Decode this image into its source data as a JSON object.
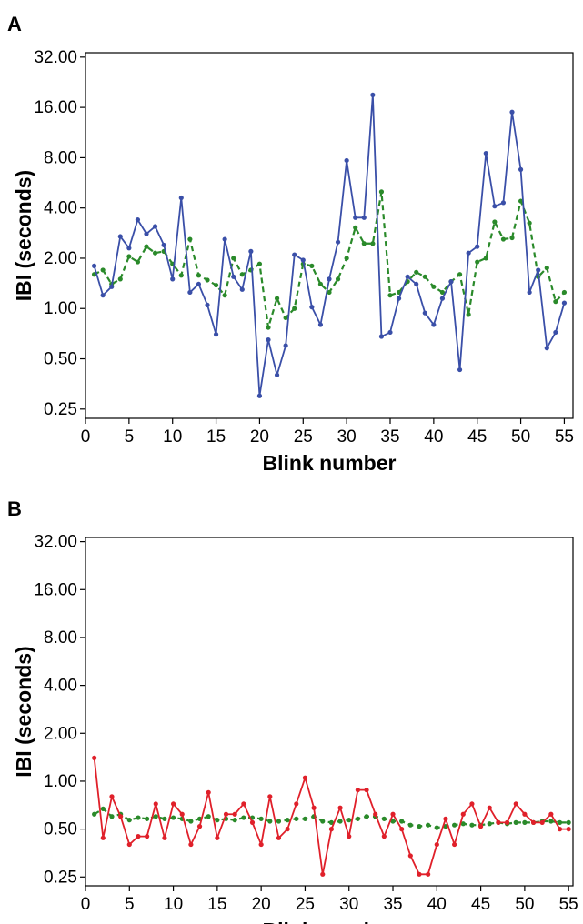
{
  "chart_data": [
    {
      "type": "line",
      "panel_label": "A",
      "xlabel": "Blink number",
      "ylabel": "IBI (seconds)",
      "y_scale": "log2",
      "ylim": [
        0.22,
        34
      ],
      "xlim": [
        0,
        56
      ],
      "y_ticks": [
        0.25,
        0.5,
        1.0,
        2.0,
        4.0,
        8.0,
        16.0,
        32.0
      ],
      "y_tick_labels": [
        "0.25",
        "0.50",
        "1.00",
        "2.00",
        "4.00",
        "8.00",
        "16.00",
        "32.00"
      ],
      "x_ticks": [
        0,
        5,
        10,
        15,
        20,
        25,
        30,
        35,
        40,
        45,
        50,
        55
      ],
      "x_tick_labels": [
        "0",
        "5",
        "10",
        "15",
        "20",
        "25",
        "30",
        "35",
        "40",
        "45",
        "50",
        "55"
      ],
      "grid": false,
      "series": [
        {
          "color": "#3a4fa8",
          "dash": "solid",
          "x": [
            1,
            2,
            3,
            4,
            5,
            6,
            7,
            8,
            9,
            10,
            11,
            12,
            13,
            14,
            15,
            16,
            17,
            18,
            19,
            20,
            21,
            22,
            23,
            24,
            25,
            26,
            27,
            28,
            29,
            30,
            31,
            32,
            33,
            34,
            35,
            36,
            37,
            38,
            39,
            40,
            41,
            42,
            43,
            44,
            45,
            46,
            47,
            48,
            49,
            50,
            51,
            52,
            53,
            54,
            55
          ],
          "values": [
            1.8,
            1.2,
            1.35,
            2.7,
            2.3,
            3.4,
            2.8,
            3.1,
            2.4,
            1.5,
            4.6,
            1.25,
            1.4,
            1.05,
            0.7,
            2.6,
            1.55,
            1.3,
            2.2,
            0.3,
            0.65,
            0.4,
            0.6,
            2.1,
            1.95,
            1.02,
            0.8,
            1.5,
            2.5,
            7.7,
            3.5,
            3.5,
            19.0,
            0.68,
            0.72,
            1.15,
            1.55,
            1.4,
            0.94,
            0.8,
            1.15,
            1.45,
            0.43,
            2.15,
            2.35,
            8.5,
            4.1,
            4.3,
            15.0,
            6.8,
            1.25,
            1.7,
            0.58,
            0.72,
            1.08
          ]
        },
        {
          "color": "#2a8a2a",
          "dash": "dashed",
          "x": [
            1,
            2,
            3,
            4,
            5,
            6,
            7,
            8,
            9,
            10,
            11,
            12,
            13,
            14,
            15,
            16,
            17,
            18,
            19,
            20,
            21,
            22,
            23,
            24,
            25,
            26,
            27,
            28,
            29,
            30,
            31,
            32,
            33,
            34,
            35,
            36,
            37,
            38,
            39,
            40,
            41,
            42,
            43,
            44,
            45,
            46,
            47,
            48,
            49,
            50,
            51,
            52,
            53,
            54,
            55
          ],
          "values": [
            1.6,
            1.7,
            1.4,
            1.5,
            2.05,
            1.9,
            2.35,
            2.15,
            2.2,
            1.85,
            1.58,
            2.6,
            1.58,
            1.48,
            1.38,
            1.2,
            2.0,
            1.6,
            1.7,
            1.85,
            0.77,
            1.15,
            0.88,
            1.0,
            1.85,
            1.8,
            1.4,
            1.25,
            1.5,
            2.0,
            3.05,
            2.45,
            2.45,
            5.0,
            1.2,
            1.25,
            1.45,
            1.65,
            1.55,
            1.35,
            1.25,
            1.45,
            1.6,
            0.92,
            1.9,
            2.0,
            3.3,
            2.6,
            2.65,
            4.4,
            3.25,
            1.55,
            1.75,
            1.1,
            1.25
          ]
        }
      ]
    },
    {
      "type": "line",
      "panel_label": "B",
      "xlabel": "Blink number",
      "ylabel": "IBI (seconds)",
      "y_scale": "log2",
      "ylim": [
        0.22,
        34
      ],
      "xlim": [
        0,
        55.5
      ],
      "y_ticks": [
        0.25,
        0.5,
        1.0,
        2.0,
        4.0,
        8.0,
        16.0,
        32.0
      ],
      "y_tick_labels": [
        "0.25",
        "0.50",
        "1.00",
        "2.00",
        "4.00",
        "8.00",
        "16.00",
        "32.00"
      ],
      "x_ticks": [
        0,
        5,
        10,
        15,
        20,
        25,
        30,
        35,
        40,
        45,
        50,
        55
      ],
      "x_tick_labels": [
        "0",
        "5",
        "10",
        "15",
        "20",
        "25",
        "30",
        "35",
        "40",
        "45",
        "50",
        "55"
      ],
      "grid": false,
      "series": [
        {
          "color": "#e0202a",
          "dash": "solid",
          "x": [
            1,
            2,
            3,
            4,
            5,
            6,
            7,
            8,
            9,
            10,
            11,
            12,
            13,
            14,
            15,
            16,
            17,
            18,
            19,
            20,
            21,
            22,
            23,
            24,
            25,
            26,
            27,
            28,
            29,
            30,
            31,
            32,
            33,
            34,
            35,
            36,
            37,
            38,
            39,
            40,
            41,
            42,
            43,
            44,
            45,
            46,
            47,
            48,
            49,
            50,
            51,
            52,
            53,
            54,
            55
          ],
          "values": [
            1.4,
            0.44,
            0.8,
            0.6,
            0.4,
            0.45,
            0.45,
            0.72,
            0.44,
            0.72,
            0.62,
            0.4,
            0.52,
            0.85,
            0.44,
            0.62,
            0.62,
            0.72,
            0.55,
            0.4,
            0.8,
            0.44,
            0.5,
            0.72,
            1.05,
            0.68,
            0.26,
            0.5,
            0.68,
            0.45,
            0.88,
            0.88,
            0.62,
            0.45,
            0.62,
            0.5,
            0.34,
            0.26,
            0.26,
            0.4,
            0.58,
            0.4,
            0.62,
            0.72,
            0.52,
            0.68,
            0.55,
            0.55,
            0.72,
            0.62,
            0.55,
            0.55,
            0.62,
            0.5,
            0.5
          ]
        },
        {
          "color": "#2a8a2a",
          "dash": "dashed",
          "x": [
            1,
            2,
            3,
            4,
            5,
            6,
            7,
            8,
            9,
            10,
            11,
            12,
            13,
            14,
            15,
            16,
            17,
            18,
            19,
            20,
            21,
            22,
            23,
            24,
            25,
            26,
            27,
            28,
            29,
            30,
            31,
            32,
            33,
            34,
            35,
            36,
            37,
            38,
            39,
            40,
            41,
            42,
            43,
            44,
            45,
            46,
            47,
            48,
            49,
            50,
            51,
            52,
            53,
            54,
            55
          ],
          "values": [
            0.62,
            0.67,
            0.6,
            0.62,
            0.57,
            0.59,
            0.58,
            0.6,
            0.58,
            0.59,
            0.58,
            0.56,
            0.58,
            0.6,
            0.57,
            0.58,
            0.57,
            0.59,
            0.59,
            0.58,
            0.56,
            0.56,
            0.57,
            0.58,
            0.58,
            0.6,
            0.56,
            0.55,
            0.56,
            0.57,
            0.58,
            0.6,
            0.6,
            0.58,
            0.56,
            0.56,
            0.53,
            0.52,
            0.53,
            0.51,
            0.52,
            0.53,
            0.54,
            0.53,
            0.53,
            0.54,
            0.55,
            0.54,
            0.55,
            0.55,
            0.55,
            0.56,
            0.56,
            0.55,
            0.55
          ]
        }
      ]
    }
  ]
}
